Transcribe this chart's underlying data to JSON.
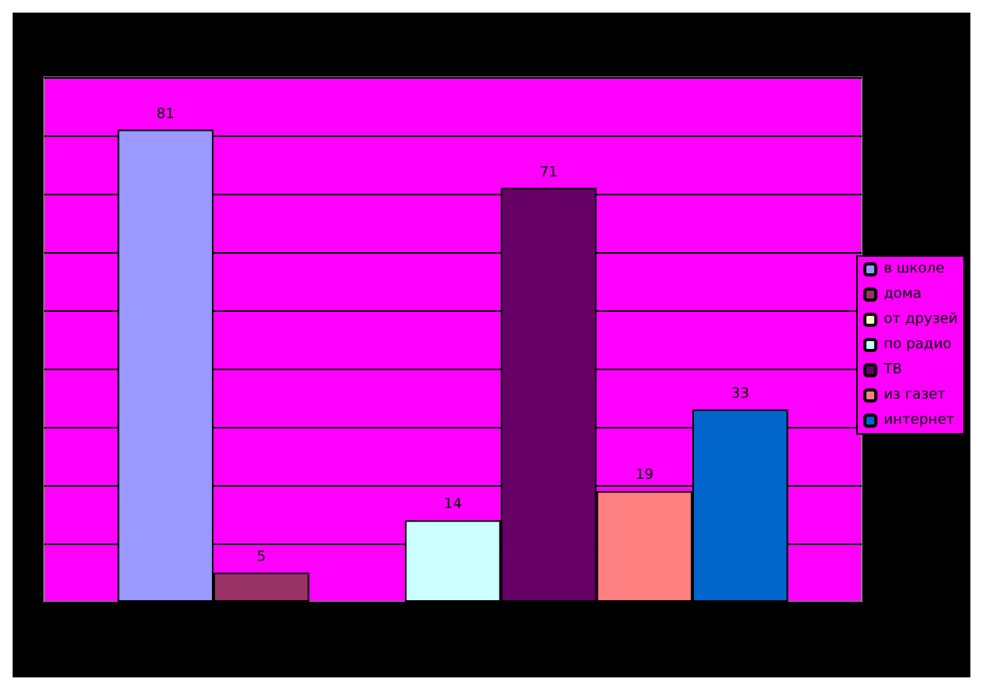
{
  "chart_data": {
    "type": "bar",
    "categories": [
      null
    ],
    "ylim": [
      0,
      90
    ],
    "yticks": [
      {
        "value": 0,
        "label": null
      },
      {
        "value": 10,
        "label": null
      },
      {
        "value": 20,
        "label": null
      },
      {
        "value": 30,
        "label": null
      },
      {
        "value": 40,
        "label": null
      },
      {
        "value": 50,
        "label": null
      },
      {
        "value": 60,
        "label": null
      },
      {
        "value": 70,
        "label": null
      },
      {
        "value": 80,
        "label": null
      },
      {
        "value": 90,
        "label": null
      }
    ],
    "grid": "y",
    "legend": "right",
    "series": [
      {
        "name": "в школе",
        "color": "#9999ff",
        "values": [
          81
        ],
        "value_labels": [
          "81"
        ]
      },
      {
        "name": "дома",
        "color": "#993366",
        "values": [
          5
        ],
        "value_labels": [
          "5"
        ]
      },
      {
        "name": "от друзей",
        "color": "#ffffcc",
        "values": [
          null
        ],
        "value_labels": [
          null
        ]
      },
      {
        "name": "по радио",
        "color": "#ccffff",
        "values": [
          14
        ],
        "value_labels": [
          "14"
        ]
      },
      {
        "name": "ТВ",
        "color": "#660066",
        "values": [
          71
        ],
        "value_labels": [
          "71"
        ]
      },
      {
        "name": "из газет",
        "color": "#ff8080",
        "values": [
          19
        ],
        "value_labels": [
          "19"
        ]
      },
      {
        "name": "интернет",
        "color": "#0066cc",
        "values": [
          33
        ],
        "value_labels": [
          "33"
        ]
      }
    ]
  }
}
